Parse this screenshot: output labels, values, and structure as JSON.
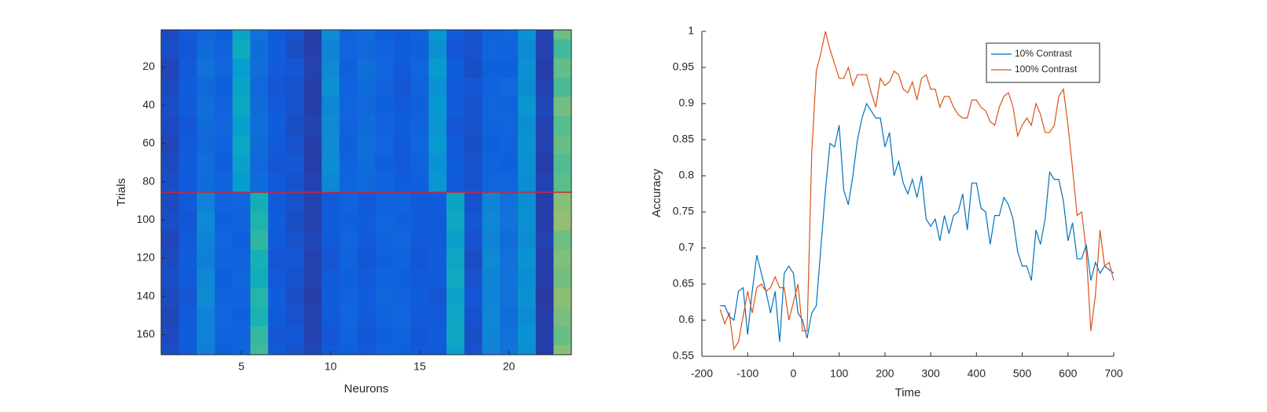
{
  "chart_data": [
    {
      "type": "heatmap",
      "x_label": "Neurons",
      "y_label": "Trials",
      "x": [
        1,
        2,
        3,
        4,
        5,
        6,
        7,
        8,
        9,
        10,
        11,
        12,
        13,
        14,
        15,
        16,
        17,
        18,
        19,
        20,
        21,
        22,
        23
      ],
      "xlim": [
        0.5,
        23.5
      ],
      "ylim": [
        0.5,
        170.5
      ],
      "y_reversed": true,
      "xticks": [
        5,
        10,
        15,
        20
      ],
      "yticks": [
        20,
        40,
        60,
        80,
        100,
        120,
        140,
        160
      ],
      "ybins": [
        0.5,
        5.5,
        15.5,
        25.5,
        35.5,
        45.5,
        55.5,
        65.5,
        75.5,
        85.5,
        95.5,
        105.5,
        115.5,
        125.5,
        135.5,
        145.5,
        155.5,
        165.5,
        170.5
      ],
      "colormap": "parula",
      "clim": [
        0,
        1
      ],
      "hline": {
        "value": 85.5,
        "color": "#c8283c"
      },
      "values": [
        [
          0.08,
          0.12,
          0.16,
          0.14,
          0.42,
          0.2,
          0.12,
          0.1,
          0.05,
          0.32,
          0.15,
          0.18,
          0.14,
          0.12,
          0.15,
          0.36,
          0.12,
          0.1,
          0.15,
          0.16,
          0.34,
          0.06,
          0.66
        ],
        [
          0.09,
          0.11,
          0.18,
          0.15,
          0.45,
          0.18,
          0.13,
          0.09,
          0.05,
          0.28,
          0.16,
          0.17,
          0.15,
          0.13,
          0.14,
          0.33,
          0.11,
          0.1,
          0.16,
          0.15,
          0.3,
          0.06,
          0.58
        ],
        [
          0.07,
          0.12,
          0.2,
          0.16,
          0.38,
          0.19,
          0.12,
          0.11,
          0.06,
          0.3,
          0.14,
          0.19,
          0.16,
          0.12,
          0.16,
          0.37,
          0.13,
          0.09,
          0.14,
          0.14,
          0.33,
          0.05,
          0.64
        ],
        [
          0.08,
          0.13,
          0.17,
          0.14,
          0.41,
          0.17,
          0.11,
          0.1,
          0.05,
          0.33,
          0.15,
          0.18,
          0.15,
          0.11,
          0.15,
          0.34,
          0.12,
          0.11,
          0.15,
          0.17,
          0.31,
          0.06,
          0.6
        ],
        [
          0.09,
          0.12,
          0.19,
          0.15,
          0.44,
          0.18,
          0.12,
          0.1,
          0.05,
          0.29,
          0.16,
          0.17,
          0.14,
          0.12,
          0.14,
          0.36,
          0.12,
          0.1,
          0.16,
          0.15,
          0.35,
          0.07,
          0.67
        ],
        [
          0.08,
          0.11,
          0.18,
          0.16,
          0.39,
          0.19,
          0.13,
          0.09,
          0.06,
          0.31,
          0.15,
          0.18,
          0.15,
          0.13,
          0.15,
          0.35,
          0.11,
          0.1,
          0.15,
          0.16,
          0.32,
          0.06,
          0.62
        ],
        [
          0.07,
          0.12,
          0.17,
          0.15,
          0.43,
          0.18,
          0.12,
          0.1,
          0.05,
          0.3,
          0.14,
          0.19,
          0.16,
          0.12,
          0.16,
          0.37,
          0.12,
          0.09,
          0.14,
          0.15,
          0.34,
          0.06,
          0.65
        ],
        [
          0.08,
          0.13,
          0.19,
          0.14,
          0.4,
          0.17,
          0.11,
          0.11,
          0.05,
          0.32,
          0.15,
          0.18,
          0.14,
          0.12,
          0.15,
          0.34,
          0.13,
          0.1,
          0.15,
          0.14,
          0.33,
          0.05,
          0.61
        ],
        [
          0.09,
          0.12,
          0.18,
          0.15,
          0.37,
          0.18,
          0.12,
          0.1,
          0.06,
          0.29,
          0.16,
          0.17,
          0.15,
          0.13,
          0.14,
          0.35,
          0.12,
          0.1,
          0.16,
          0.16,
          0.31,
          0.06,
          0.63
        ],
        [
          0.08,
          0.12,
          0.27,
          0.15,
          0.16,
          0.48,
          0.12,
          0.1,
          0.06,
          0.12,
          0.15,
          0.12,
          0.15,
          0.15,
          0.12,
          0.13,
          0.42,
          0.1,
          0.28,
          0.2,
          0.32,
          0.05,
          0.7
        ],
        [
          0.09,
          0.11,
          0.3,
          0.14,
          0.15,
          0.52,
          0.13,
          0.09,
          0.06,
          0.13,
          0.14,
          0.13,
          0.16,
          0.14,
          0.13,
          0.12,
          0.44,
          0.11,
          0.29,
          0.21,
          0.33,
          0.05,
          0.72
        ],
        [
          0.07,
          0.12,
          0.28,
          0.16,
          0.14,
          0.55,
          0.12,
          0.1,
          0.07,
          0.12,
          0.16,
          0.12,
          0.15,
          0.16,
          0.12,
          0.12,
          0.4,
          0.1,
          0.27,
          0.19,
          0.31,
          0.06,
          0.66
        ],
        [
          0.08,
          0.13,
          0.26,
          0.15,
          0.15,
          0.5,
          0.11,
          0.11,
          0.06,
          0.11,
          0.15,
          0.11,
          0.14,
          0.15,
          0.11,
          0.13,
          0.43,
          0.09,
          0.3,
          0.2,
          0.34,
          0.05,
          0.69
        ],
        [
          0.09,
          0.12,
          0.29,
          0.14,
          0.16,
          0.47,
          0.12,
          0.1,
          0.06,
          0.12,
          0.14,
          0.12,
          0.15,
          0.14,
          0.12,
          0.12,
          0.45,
          0.1,
          0.28,
          0.21,
          0.32,
          0.05,
          0.67
        ],
        [
          0.08,
          0.11,
          0.31,
          0.15,
          0.15,
          0.53,
          0.13,
          0.09,
          0.05,
          0.13,
          0.15,
          0.13,
          0.16,
          0.15,
          0.13,
          0.11,
          0.41,
          0.11,
          0.27,
          0.2,
          0.33,
          0.04,
          0.71
        ],
        [
          0.07,
          0.12,
          0.27,
          0.16,
          0.14,
          0.51,
          0.12,
          0.1,
          0.06,
          0.12,
          0.16,
          0.12,
          0.15,
          0.16,
          0.12,
          0.12,
          0.43,
          0.1,
          0.29,
          0.19,
          0.31,
          0.05,
          0.68
        ],
        [
          0.08,
          0.13,
          0.28,
          0.15,
          0.15,
          0.56,
          0.11,
          0.11,
          0.06,
          0.11,
          0.15,
          0.11,
          0.14,
          0.15,
          0.11,
          0.13,
          0.44,
          0.09,
          0.28,
          0.2,
          0.34,
          0.05,
          0.65
        ],
        [
          0.09,
          0.12,
          0.26,
          0.14,
          0.16,
          0.58,
          0.12,
          0.1,
          0.07,
          0.12,
          0.14,
          0.12,
          0.15,
          0.14,
          0.12,
          0.12,
          0.4,
          0.1,
          0.27,
          0.21,
          0.32,
          0.05,
          0.7
        ]
      ]
    },
    {
      "type": "line",
      "x_label": "Time",
      "y_label": "Accuracy",
      "x": [
        -160,
        -150,
        -140,
        -130,
        -120,
        -110,
        -100,
        -90,
        -80,
        -70,
        -60,
        -50,
        -40,
        -30,
        -20,
        -10,
        0,
        10,
        20,
        30,
        40,
        50,
        60,
        70,
        80,
        90,
        100,
        110,
        120,
        130,
        140,
        150,
        160,
        170,
        180,
        190,
        200,
        210,
        220,
        230,
        240,
        250,
        260,
        270,
        280,
        290,
        300,
        310,
        320,
        330,
        340,
        350,
        360,
        370,
        380,
        390,
        400,
        410,
        420,
        430,
        440,
        450,
        460,
        470,
        480,
        490,
        500,
        510,
        520,
        530,
        540,
        550,
        560,
        570,
        580,
        590,
        600,
        610,
        620,
        630,
        640,
        650,
        660,
        670,
        680,
        690,
        700
      ],
      "xlim": [
        -200,
        700
      ],
      "ylim": [
        0.55,
        1
      ],
      "xticks": [
        -200,
        -100,
        0,
        100,
        200,
        300,
        400,
        500,
        600,
        700
      ],
      "yticks": [
        0.55,
        0.6,
        0.65,
        0.7,
        0.75,
        0.8,
        0.85,
        0.9,
        0.95,
        1
      ],
      "legend": "upper right",
      "series": [
        {
          "name": "10% Contrast",
          "color": "#0072bd",
          "values": [
            0.62,
            0.62,
            0.605,
            0.6,
            0.64,
            0.645,
            0.58,
            0.64,
            0.69,
            0.665,
            0.64,
            0.61,
            0.64,
            0.57,
            0.665,
            0.675,
            0.665,
            0.61,
            0.6,
            0.575,
            0.61,
            0.62,
            0.7,
            0.78,
            0.845,
            0.84,
            0.87,
            0.78,
            0.76,
            0.8,
            0.85,
            0.88,
            0.9,
            0.89,
            0.88,
            0.88,
            0.84,
            0.86,
            0.8,
            0.82,
            0.79,
            0.775,
            0.795,
            0.77,
            0.8,
            0.74,
            0.73,
            0.74,
            0.71,
            0.745,
            0.72,
            0.745,
            0.75,
            0.775,
            0.725,
            0.79,
            0.79,
            0.755,
            0.75,
            0.705,
            0.745,
            0.745,
            0.77,
            0.76,
            0.74,
            0.695,
            0.675,
            0.675,
            0.655,
            0.725,
            0.705,
            0.74,
            0.805,
            0.795,
            0.795,
            0.765,
            0.71,
            0.735,
            0.685,
            0.685,
            0.705,
            0.655,
            0.68,
            0.665,
            0.675,
            0.67,
            0.665
          ]
        },
        {
          "name": "100% Contrast",
          "color": "#d95319",
          "values": [
            0.615,
            0.595,
            0.61,
            0.56,
            0.57,
            0.605,
            0.64,
            0.61,
            0.645,
            0.65,
            0.64,
            0.645,
            0.66,
            0.645,
            0.645,
            0.6,
            0.625,
            0.65,
            0.585,
            0.585,
            0.83,
            0.945,
            0.97,
            1,
            0.975,
            0.955,
            0.935,
            0.935,
            0.95,
            0.925,
            0.94,
            0.94,
            0.94,
            0.915,
            0.895,
            0.935,
            0.925,
            0.93,
            0.945,
            0.94,
            0.92,
            0.915,
            0.93,
            0.905,
            0.935,
            0.94,
            0.92,
            0.92,
            0.895,
            0.91,
            0.91,
            0.895,
            0.885,
            0.88,
            0.88,
            0.905,
            0.905,
            0.895,
            0.89,
            0.875,
            0.87,
            0.895,
            0.91,
            0.915,
            0.895,
            0.855,
            0.87,
            0.88,
            0.87,
            0.9,
            0.885,
            0.86,
            0.86,
            0.87,
            0.91,
            0.92,
            0.87,
            0.81,
            0.745,
            0.75,
            0.695,
            0.585,
            0.635,
            0.725,
            0.675,
            0.68,
            0.655
          ]
        }
      ]
    }
  ]
}
